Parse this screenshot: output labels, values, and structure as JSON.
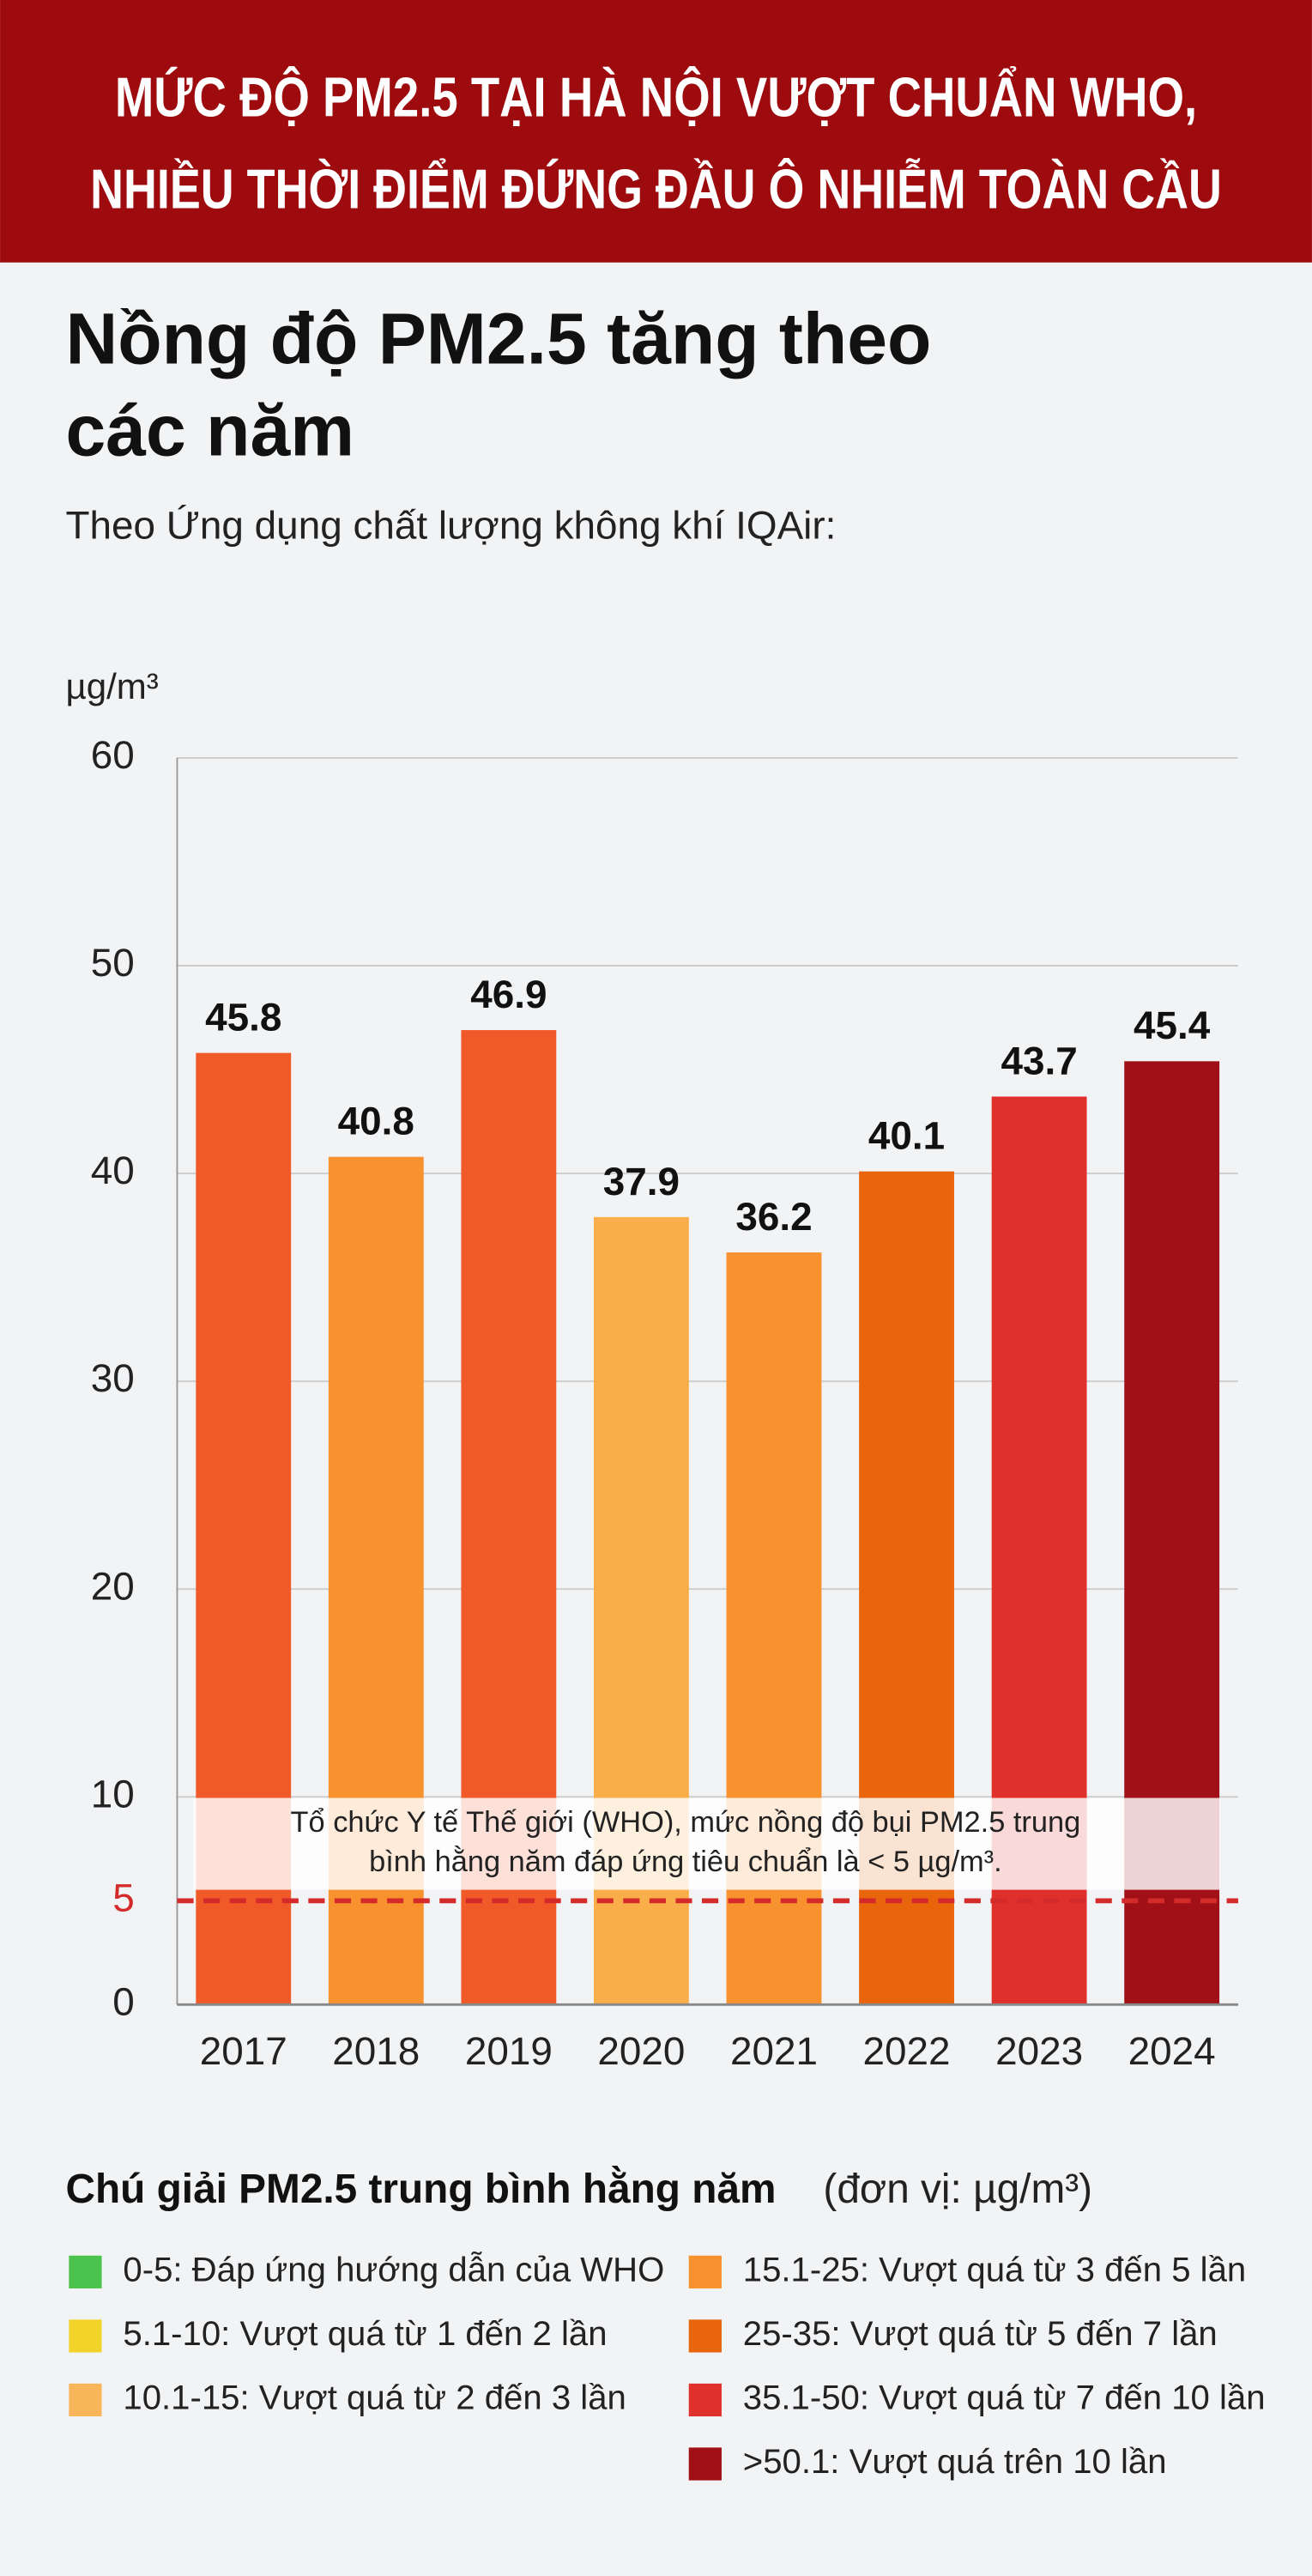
{
  "header": {
    "lines": [
      "MỨC ĐỘ PM2.5 TẠI HÀ NỘI VƯỢT CHUẨN WHO,",
      "NHIỀU THỜI ĐIỂM ĐỨNG ĐẦU Ô NHIỄM TOÀN CẦU"
    ]
  },
  "chart_data": {
    "type": "bar",
    "title": [
      "Nồng độ PM2.5 tăng theo",
      "các năm"
    ],
    "subtitle": "Theo Ứng dụng chất lượng không khí IQAir:",
    "y_label": "µg/m³",
    "categories": [
      "2017",
      "2018",
      "2019",
      "2020",
      "2021",
      "2022",
      "2023",
      "2024"
    ],
    "values": [
      45.8,
      40.8,
      46.9,
      37.9,
      36.2,
      40.1,
      43.7,
      45.4
    ],
    "colors": [
      "#f05a28",
      "#f7922e",
      "#f05a28",
      "#f9ae4a",
      "#f7922e",
      "#e8650c",
      "#e0302c",
      "#a01016"
    ],
    "ylim": [
      0,
      60
    ],
    "yticks": [
      0,
      5,
      10,
      20,
      30,
      40,
      50,
      60
    ],
    "grid": true,
    "reference_line": {
      "value": 5,
      "color": "#d42a2a",
      "annotation": [
        "Tổ chức Y tế Thế giới (WHO), mức nồng độ bụi PM2.5 trung",
        "bình hằng năm đáp ứng tiêu chuẩn là < 5 µg/m³."
      ]
    }
  },
  "legend": {
    "title": "Chú giải PM2.5 trung bình hằng năm",
    "unit": "(đơn vị: µg/m³)",
    "items": [
      {
        "color": "#4cc34c",
        "label": "0-5: Đáp ứng hướng dẫn của WHO"
      },
      {
        "color": "#f2d32a",
        "label": "5.1-10: Vượt quá từ 1 đến 2 lần"
      },
      {
        "color": "#f9b55a",
        "label": "10.1-15: Vượt quá từ 2 đến 3 lần"
      },
      {
        "color": "#f7922e",
        "label": "15.1-25: Vượt quá từ 3 đến 5 lần"
      },
      {
        "color": "#e8650c",
        "label": "25-35: Vượt quá từ 5 đến 7 lần"
      },
      {
        "color": "#e0302c",
        "label": "35.1-50: Vượt quá từ 7 đến 10 lần"
      },
      {
        "color": "#a01016",
        "label": ">50.1: Vượt quá trên 10 lần"
      }
    ]
  }
}
